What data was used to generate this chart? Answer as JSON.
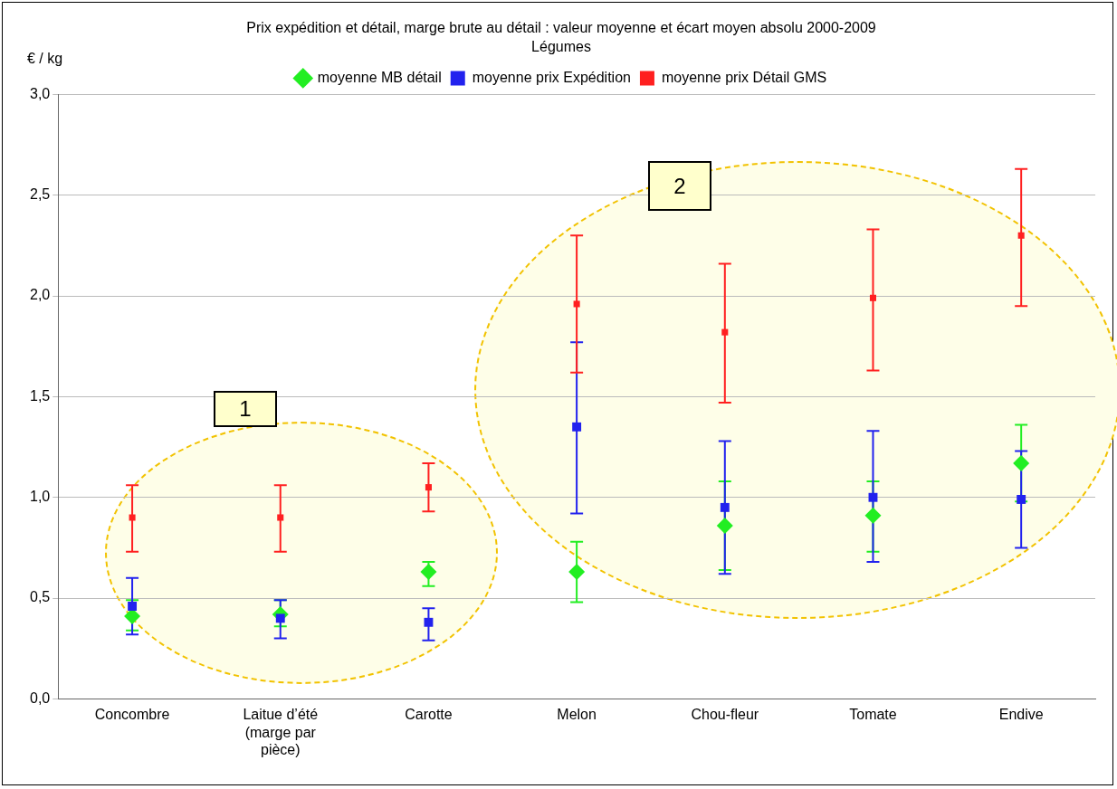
{
  "chart_data": {
    "type": "scatter",
    "title": "Prix expédition et détail, marge brute au détail : valeur moyenne et écart moyen absolu 2000-2009",
    "subtitle": "Légumes",
    "ylabel": "€ / kg",
    "categories": [
      "Concombre",
      "Laitue d’été (marge par pièce)",
      "Carotte",
      "Melon",
      "Chou-fleur",
      "Tomate",
      "Endive"
    ],
    "series": [
      {
        "name": "moyenne MB détail",
        "color": "#22ee22",
        "marker": "diamond",
        "values": [
          0.41,
          0.42,
          0.63,
          0.63,
          0.86,
          0.91,
          1.17
        ],
        "errors": [
          [
            0.34,
            0.49
          ],
          [
            0.36,
            0.49
          ],
          [
            0.56,
            0.68
          ],
          [
            0.48,
            0.78
          ],
          [
            0.64,
            1.08
          ],
          [
            0.73,
            1.08
          ],
          [
            0.98,
            1.36
          ]
        ]
      },
      {
        "name": "moyenne prix Expédition",
        "color": "#2222ee",
        "marker": "square",
        "values": [
          0.46,
          0.4,
          0.38,
          1.35,
          0.95,
          1.0,
          0.99
        ],
        "errors": [
          [
            0.32,
            0.6
          ],
          [
            0.3,
            0.49
          ],
          [
            0.29,
            0.45
          ],
          [
            0.92,
            1.77
          ],
          [
            0.62,
            1.28
          ],
          [
            0.68,
            1.33
          ],
          [
            0.75,
            1.23
          ]
        ]
      },
      {
        "name": "moyenne prix Détail GMS",
        "color": "#ff2020",
        "marker": "square",
        "values": [
          0.9,
          0.9,
          1.05,
          1.96,
          1.82,
          1.99,
          2.3
        ],
        "errors": [
          [
            0.73,
            1.06
          ],
          [
            0.73,
            1.06
          ],
          [
            0.93,
            1.17
          ],
          [
            1.62,
            2.3
          ],
          [
            1.47,
            2.16
          ],
          [
            1.63,
            2.33
          ],
          [
            1.95,
            2.63
          ]
        ]
      }
    ],
    "ylim": [
      0,
      3
    ],
    "yticks": [
      {
        "value": 0,
        "label": "0,0"
      },
      {
        "value": 0.5,
        "label": "0,5"
      },
      {
        "value": 1,
        "label": "1,0"
      },
      {
        "value": 1.5,
        "label": "1,5"
      },
      {
        "value": 2,
        "label": "2,0"
      },
      {
        "value": 2.5,
        "label": "2,5"
      },
      {
        "value": 3,
        "label": "3,0"
      }
    ],
    "grid": "y",
    "legend": "top",
    "annotations": [
      "1",
      "2"
    ]
  }
}
